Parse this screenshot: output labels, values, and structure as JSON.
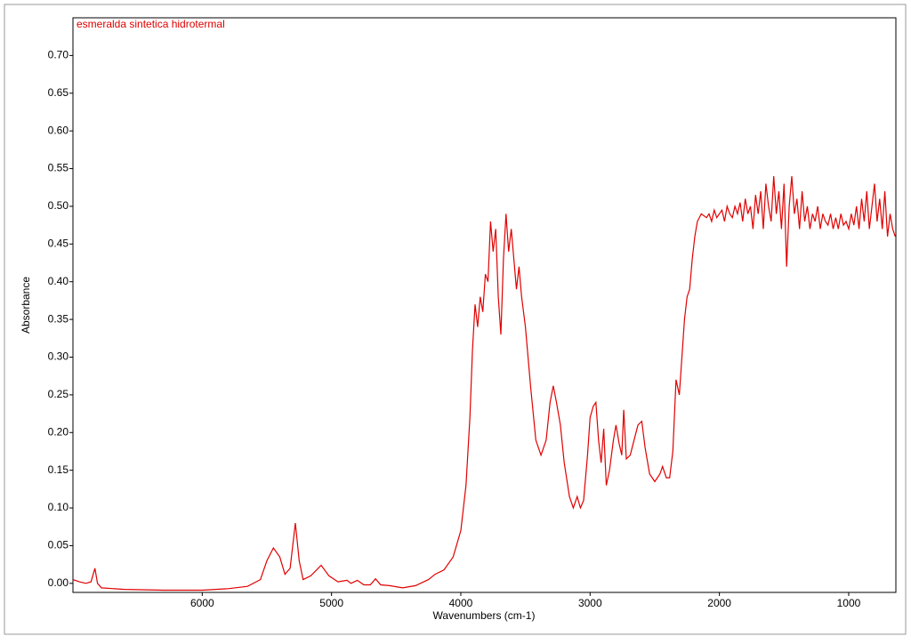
{
  "chart_data": {
    "type": "line",
    "annotation": "esmeralda sintetica hidrotermal",
    "x_label": "Wavenumbers (cm-1)",
    "y_label": "Absorbance",
    "xlim": [
      7000,
      635
    ],
    "ylim": [
      -0.012,
      0.75
    ],
    "xticks": [
      6000,
      5000,
      4000,
      3000,
      2000,
      1000
    ],
    "yticks": [
      {
        "value": 0,
        "label": "0.00"
      },
      {
        "value": 0.05,
        "label": "0.05"
      },
      {
        "value": 0.1,
        "label": "0.10"
      },
      {
        "value": 0.15,
        "label": "0.15"
      },
      {
        "value": 0.2,
        "label": "0.20"
      },
      {
        "value": 0.25,
        "label": "0.25"
      },
      {
        "value": 0.3,
        "label": "0.30"
      },
      {
        "value": 0.35,
        "label": "0.35"
      },
      {
        "value": 0.4,
        "label": "0.40"
      },
      {
        "value": 0.45,
        "label": "0.45"
      },
      {
        "value": 0.5,
        "label": "0.50"
      },
      {
        "value": 0.55,
        "label": "0.55"
      },
      {
        "value": 0.6,
        "label": "0.60"
      },
      {
        "value": 0.65,
        "label": "0.65"
      },
      {
        "value": 0.7,
        "label": "0.70"
      }
    ],
    "x": [
      7000,
      6950,
      6900,
      6860,
      6830,
      6810,
      6780,
      6600,
      6300,
      6000,
      5800,
      5650,
      5550,
      5500,
      5450,
      5400,
      5360,
      5320,
      5280,
      5250,
      5220,
      5160,
      5080,
      5020,
      4950,
      4880,
      4850,
      4800,
      4750,
      4700,
      4660,
      4620,
      4550,
      4450,
      4350,
      4250,
      4200,
      4130,
      4060,
      4000,
      3960,
      3930,
      3910,
      3890,
      3870,
      3850,
      3830,
      3810,
      3790,
      3770,
      3750,
      3730,
      3710,
      3690,
      3670,
      3650,
      3630,
      3610,
      3590,
      3570,
      3550,
      3530,
      3500,
      3460,
      3420,
      3380,
      3340,
      3310,
      3285,
      3260,
      3230,
      3200,
      3160,
      3130,
      3100,
      3075,
      3050,
      3020,
      3000,
      2975,
      2955,
      2935,
      2915,
      2895,
      2875,
      2850,
      2820,
      2800,
      2775,
      2755,
      2740,
      2720,
      2690,
      2660,
      2630,
      2600,
      2575,
      2540,
      2500,
      2460,
      2440,
      2410,
      2385,
      2360,
      2335,
      2310,
      2290,
      2270,
      2250,
      2230,
      2210,
      2190,
      2170,
      2140,
      2100,
      2080,
      2060,
      2040,
      2020,
      2000,
      1980,
      1960,
      1940,
      1920,
      1900,
      1880,
      1860,
      1840,
      1820,
      1800,
      1780,
      1760,
      1740,
      1720,
      1700,
      1680,
      1660,
      1640,
      1620,
      1600,
      1580,
      1560,
      1540,
      1520,
      1500,
      1480,
      1460,
      1440,
      1420,
      1400,
      1380,
      1360,
      1340,
      1320,
      1300,
      1280,
      1260,
      1240,
      1220,
      1200,
      1180,
      1160,
      1140,
      1120,
      1100,
      1080,
      1060,
      1040,
      1020,
      1000,
      980,
      960,
      940,
      920,
      900,
      880,
      860,
      840,
      820,
      800,
      780,
      760,
      740,
      720,
      700,
      680,
      660,
      640
    ],
    "series": [
      {
        "color": "#e00000",
        "values": [
          0.005,
          0.002,
          0,
          0.002,
          0.02,
          0,
          -0.006,
          -0.008,
          -0.009,
          -0.009,
          -0.007,
          -0.004,
          0.005,
          0.03,
          0.047,
          0.035,
          0.012,
          0.02,
          0.08,
          0.03,
          0.005,
          0.01,
          0.024,
          0.01,
          0.002,
          0.004,
          0,
          0.004,
          -0.002,
          -0.002,
          0.006,
          -0.002,
          -0.003,
          -0.006,
          -0.003,
          0.005,
          0.012,
          0.018,
          0.035,
          0.07,
          0.13,
          0.22,
          0.31,
          0.37,
          0.34,
          0.38,
          0.36,
          0.41,
          0.4,
          0.48,
          0.44,
          0.47,
          0.38,
          0.33,
          0.43,
          0.49,
          0.44,
          0.47,
          0.43,
          0.39,
          0.42,
          0.38,
          0.34,
          0.26,
          0.19,
          0.17,
          0.19,
          0.24,
          0.262,
          0.24,
          0.21,
          0.16,
          0.115,
          0.1,
          0.115,
          0.1,
          0.11,
          0.17,
          0.22,
          0.235,
          0.24,
          0.19,
          0.16,
          0.205,
          0.13,
          0.15,
          0.19,
          0.21,
          0.185,
          0.17,
          0.23,
          0.165,
          0.17,
          0.19,
          0.21,
          0.215,
          0.18,
          0.145,
          0.135,
          0.145,
          0.155,
          0.14,
          0.14,
          0.175,
          0.27,
          0.25,
          0.3,
          0.35,
          0.38,
          0.39,
          0.43,
          0.46,
          0.48,
          0.49,
          0.485,
          0.49,
          0.48,
          0.495,
          0.485,
          0.49,
          0.495,
          0.48,
          0.5,
          0.49,
          0.485,
          0.5,
          0.49,
          0.505,
          0.48,
          0.51,
          0.49,
          0.5,
          0.47,
          0.515,
          0.49,
          0.52,
          0.47,
          0.53,
          0.5,
          0.48,
          0.54,
          0.49,
          0.52,
          0.47,
          0.53,
          0.42,
          0.5,
          0.54,
          0.49,
          0.51,
          0.47,
          0.52,
          0.48,
          0.5,
          0.47,
          0.49,
          0.48,
          0.5,
          0.47,
          0.49,
          0.48,
          0.475,
          0.49,
          0.47,
          0.485,
          0.47,
          0.49,
          0.475,
          0.48,
          0.47,
          0.49,
          0.475,
          0.5,
          0.47,
          0.51,
          0.48,
          0.52,
          0.47,
          0.5,
          0.53,
          0.48,
          0.51,
          0.47,
          0.52,
          0.46,
          0.49,
          0.47,
          0.46
        ]
      }
    ]
  }
}
